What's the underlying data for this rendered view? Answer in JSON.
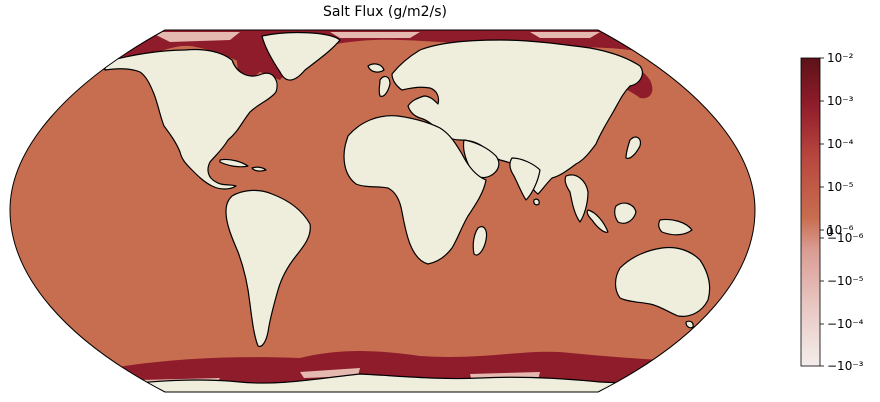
{
  "figure": {
    "title": "Salt Flux (g/m2/s)"
  },
  "map": {
    "projection": "Robinson",
    "ocean_color": "#c86e50",
    "land_color": "#efeedd",
    "ice_flux_color": "#8f1c2a",
    "coastline_color": "#000000"
  },
  "colorbar": {
    "orientation": "vertical",
    "colors": [
      "#5c1218",
      "#8f1c2a",
      "#b8463e",
      "#c86e50",
      "#d99b92",
      "#e8c6c1",
      "#f4eeec"
    ],
    "tick_labels": [
      "10⁻²",
      "10⁻³",
      "10⁻⁴",
      "10⁻⁵",
      "10⁻⁶",
      "−10⁻⁶",
      "−10⁻⁵",
      "−10⁻⁴",
      "−10⁻³"
    ],
    "extra_label": "0"
  }
}
